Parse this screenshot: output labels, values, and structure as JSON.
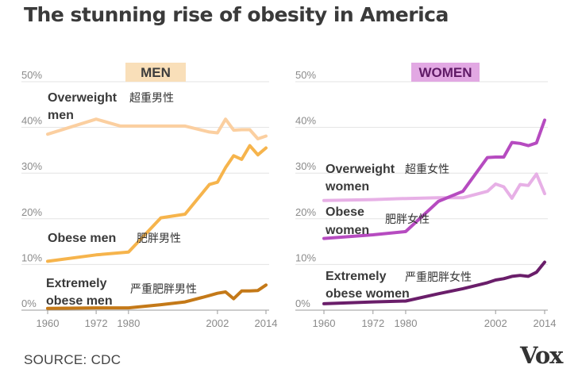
{
  "title": "The stunning rise of obesity in America",
  "source": "SOURCE: CDC",
  "brand": "Vox",
  "chart_data": [
    {
      "type": "line",
      "title": "MEN",
      "title_bg": "#f9dfb9",
      "title_color": "#3c3c3c",
      "ylim": [
        0,
        50
      ],
      "xlim": [
        1960,
        2014
      ],
      "yticks": [
        "0%",
        "10%",
        "20%",
        "30%",
        "40%",
        "50%"
      ],
      "xticks": [
        "1960",
        "1972",
        "1980",
        "2002",
        "2014"
      ],
      "grid": true,
      "series": [
        {
          "name": "Overweight\nmen",
          "cn": "超重男性",
          "color": "#fbcfa0",
          "x": [
            1960,
            1972,
            1978,
            1988,
            1994,
            2000,
            2002,
            2004,
            2006,
            2008,
            2010,
            2012,
            2014
          ],
          "values": [
            38.5,
            41.8,
            40.3,
            40.3,
            40.3,
            39.0,
            38.8,
            41.8,
            39.4,
            39.5,
            39.5,
            37.5,
            38.1
          ]
        },
        {
          "name": "Obese men",
          "cn": "肥胖男性",
          "color": "#f6b44c",
          "x": [
            1960,
            1972,
            1980,
            1988,
            1994,
            2000,
            2002,
            2004,
            2006,
            2008,
            2010,
            2012,
            2014
          ],
          "values": [
            10.7,
            12.1,
            12.7,
            20.2,
            21.0,
            27.5,
            28.0,
            31.2,
            33.8,
            33.0,
            36.0,
            34.0,
            35.5
          ]
        },
        {
          "name": "Extremely\nobese men",
          "cn": "严重肥胖男性",
          "color": "#c47918",
          "x": [
            1960,
            1972,
            1980,
            1988,
            1994,
            2000,
            2002,
            2004,
            2006,
            2008,
            2010,
            2012,
            2014
          ],
          "values": [
            0.4,
            0.5,
            0.5,
            1.2,
            1.8,
            3.2,
            3.7,
            4.0,
            2.5,
            4.2,
            4.2,
            4.3,
            5.5
          ]
        }
      ]
    },
    {
      "type": "line",
      "title": "WOMEN",
      "title_bg": "#e2a8e3",
      "title_color": "#5f1a66",
      "ylim": [
        0,
        50
      ],
      "xlim": [
        1960,
        2014
      ],
      "yticks": [
        "0%",
        "10%",
        "20%",
        "30%",
        "40%",
        "50%"
      ],
      "xticks": [
        "1960",
        "1972",
        "1980",
        "2002",
        "2014"
      ],
      "grid": true,
      "series": [
        {
          "name": "Overweight\nwomen",
          "cn": "超重女性",
          "color": "#e7b0e6",
          "x": [
            1960,
            1972,
            1978,
            1988,
            1994,
            2000,
            2002,
            2004,
            2006,
            2008,
            2010,
            2012,
            2014
          ],
          "values": [
            24.0,
            24.2,
            24.4,
            24.6,
            24.6,
            26.0,
            27.6,
            27.0,
            24.5,
            27.5,
            27.3,
            29.8,
            25.5
          ]
        },
        {
          "name": "Obese\nwomen",
          "cn": "肥胖女性",
          "color": "#b64bc0",
          "x": [
            1960,
            1972,
            1980,
            1988,
            1994,
            2000,
            2002,
            2004,
            2006,
            2008,
            2010,
            2012,
            2014
          ],
          "values": [
            15.7,
            16.5,
            17.2,
            23.8,
            26.0,
            33.4,
            33.5,
            33.5,
            36.7,
            36.5,
            36.0,
            36.6,
            41.6
          ]
        },
        {
          "name": "Extremely\nobese women",
          "cn": "严重肥胖女性",
          "color": "#6a1e6a",
          "x": [
            1960,
            1972,
            1980,
            1988,
            1994,
            2000,
            2002,
            2004,
            2006,
            2008,
            2010,
            2012,
            2014
          ],
          "values": [
            1.4,
            1.8,
            2.0,
            3.6,
            4.7,
            6.0,
            6.6,
            6.9,
            7.4,
            7.6,
            7.4,
            8.3,
            10.5
          ]
        }
      ]
    }
  ]
}
